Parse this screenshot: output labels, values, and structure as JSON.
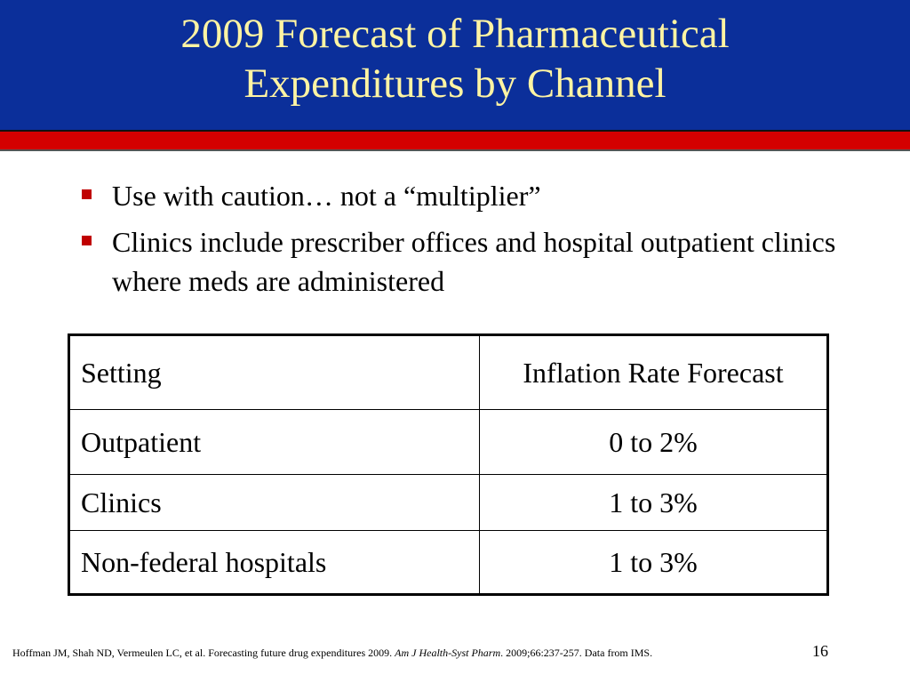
{
  "slide": {
    "title": "2009 Forecast of Pharmaceutical\nExpenditures by Channel",
    "bullets": [
      "Use with caution… not a “multiplier”",
      "Clinics include prescriber offices and hospital outpatient clinics where meds are administered"
    ],
    "table": {
      "headers": [
        "Setting",
        "Inflation Rate Forecast"
      ],
      "rows": [
        [
          "Outpatient",
          "0 to 2%"
        ],
        [
          "Clinics",
          "1 to 3%"
        ],
        [
          "Non-federal hospitals",
          "1 to 3%"
        ]
      ]
    },
    "footer": {
      "authors": "Hoffman JM, Shah ND, Vermeulen LC, et al.  Forecasting future drug expenditures 2009.  ",
      "journal": "Am J Health-Syst Pharm",
      "details": ". 2009;66:237-257.  Data from IMS."
    },
    "slide_number": "16",
    "colors": {
      "title_background": "#0b2f9a",
      "title_text": "#fff4a3",
      "stripe": "#d40000",
      "bullet": "#c00000"
    }
  }
}
